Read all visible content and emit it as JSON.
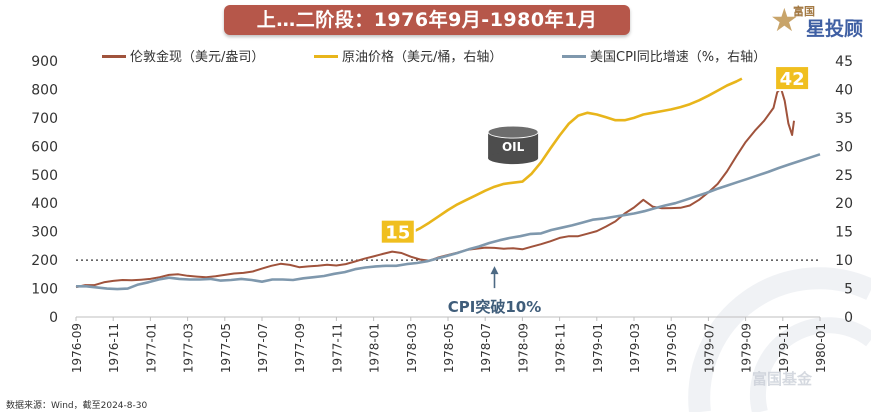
{
  "header": {
    "title": "上…二阶段：1976年9月-1980年1月"
  },
  "logo": {
    "small_text": "富国",
    "big_text": "星投顾",
    "glyph": "star-icon"
  },
  "footer": {
    "source": "数据来源：Wind，截至2024-8-30",
    "watermark": "富国基金"
  },
  "colors": {
    "gold": "#a0533c",
    "oil": "#e8b51b",
    "cpi": "#7f98ad",
    "title_bg": "#b6574a",
    "highlight_bg": "#f0bf1f"
  },
  "chart_data": {
    "type": "line",
    "x_ticks": [
      "1976-09",
      "1976-11",
      "1977-01",
      "1977-03",
      "1977-05",
      "1977-07",
      "1977-09",
      "1977-11",
      "1978-01",
      "1978-03",
      "1978-05",
      "1978-07",
      "1978-09",
      "1978-11",
      "1979-01",
      "1979-03",
      "1979-05",
      "1979-07",
      "1979-09",
      "1979-11",
      "1980-01"
    ],
    "y_left": {
      "ticks": [
        0,
        100,
        200,
        300,
        400,
        500,
        600,
        700,
        800,
        900
      ],
      "range": [
        0,
        900
      ]
    },
    "y_right": {
      "ticks": [
        0,
        5,
        10,
        15,
        20,
        25,
        30,
        35,
        40,
        45
      ],
      "range": [
        0,
        45
      ]
    },
    "reference_line": {
      "axis": "left",
      "value": 200,
      "style": "dotted"
    },
    "series": [
      {
        "name": "伦敦金现（美元/盎司）",
        "axis": "left",
        "color": "#a0533c",
        "points": [
          [
            0,
            105
          ],
          [
            0.5,
            112
          ],
          [
            1,
            112
          ],
          [
            1.5,
            122
          ],
          [
            2,
            127
          ],
          [
            2.5,
            130
          ],
          [
            3,
            129
          ],
          [
            3.5,
            131
          ],
          [
            4,
            134
          ],
          [
            4.5,
            140
          ],
          [
            5,
            148
          ],
          [
            5.5,
            150
          ],
          [
            6,
            145
          ],
          [
            6.5,
            142
          ],
          [
            7,
            140
          ],
          [
            7.5,
            143
          ],
          [
            8,
            148
          ],
          [
            8.5,
            153
          ],
          [
            9,
            155
          ],
          [
            9.5,
            160
          ],
          [
            10,
            170
          ],
          [
            10.5,
            180
          ],
          [
            11,
            187
          ],
          [
            11.5,
            183
          ],
          [
            12,
            175
          ],
          [
            12.5,
            178
          ],
          [
            13,
            180
          ],
          [
            13.5,
            184
          ],
          [
            14,
            181
          ],
          [
            14.5,
            186
          ],
          [
            15,
            195
          ],
          [
            15.5,
            205
          ],
          [
            16,
            213
          ],
          [
            16.5,
            222
          ],
          [
            17,
            230
          ],
          [
            17.5,
            225
          ],
          [
            18,
            212
          ],
          [
            18.5,
            202
          ],
          [
            19,
            198
          ],
          [
            19.5,
            210
          ],
          [
            20,
            218
          ],
          [
            20.5,
            226
          ],
          [
            21,
            236
          ],
          [
            21.5,
            240
          ],
          [
            22,
            244
          ],
          [
            22.5,
            243
          ],
          [
            23,
            240
          ],
          [
            23.5,
            242
          ],
          [
            24,
            238
          ],
          [
            24.5,
            247
          ],
          [
            25,
            256
          ],
          [
            25.5,
            266
          ],
          [
            26,
            278
          ],
          [
            26.5,
            284
          ],
          [
            27,
            284
          ],
          [
            27.5,
            293
          ],
          [
            28,
            302
          ],
          [
            28.5,
            318
          ],
          [
            29,
            336
          ],
          [
            29.5,
            364
          ],
          [
            30,
            385
          ],
          [
            30.5,
            412
          ],
          [
            31,
            388
          ],
          [
            31.5,
            382
          ],
          [
            32,
            383
          ],
          [
            32.5,
            384
          ],
          [
            33,
            392
          ],
          [
            33.5,
            412
          ],
          [
            34,
            438
          ],
          [
            34.5,
            468
          ],
          [
            35,
            512
          ],
          [
            35.5,
            565
          ],
          [
            36,
            615
          ],
          [
            36.5,
            655
          ],
          [
            37,
            690
          ],
          [
            37.5,
            735
          ],
          [
            37.7,
            790
          ],
          [
            37.9,
            805
          ],
          [
            38.1,
            760
          ],
          [
            38.3,
            680
          ],
          [
            38.5,
            640
          ],
          [
            38.6,
            690
          ]
        ]
      },
      {
        "name": "原油价格（美元/桶，右轴）",
        "axis": "right",
        "color": "#e8b51b",
        "points": [
          [
            17,
            14.1
          ],
          [
            17.6,
            14.3
          ],
          [
            18,
            14.8
          ],
          [
            18.5,
            15.6
          ],
          [
            19,
            16.6
          ],
          [
            19.5,
            17.7
          ],
          [
            20,
            18.8
          ],
          [
            20.5,
            19.8
          ],
          [
            21,
            20.6
          ],
          [
            21.5,
            21.4
          ],
          [
            22,
            22.2
          ],
          [
            22.5,
            22.9
          ],
          [
            23,
            23.4
          ],
          [
            23.5,
            23.6
          ],
          [
            24,
            23.8
          ],
          [
            24.5,
            25.2
          ],
          [
            25,
            27.2
          ],
          [
            25.5,
            29.6
          ],
          [
            26,
            31.9
          ],
          [
            26.5,
            34.0
          ],
          [
            27,
            35.4
          ],
          [
            27.5,
            35.9
          ],
          [
            28,
            35.6
          ],
          [
            28.5,
            35.1
          ],
          [
            29,
            34.6
          ],
          [
            29.5,
            34.6
          ],
          [
            30,
            35.0
          ],
          [
            30.5,
            35.6
          ],
          [
            31,
            35.9
          ],
          [
            31.5,
            36.2
          ],
          [
            32,
            36.5
          ],
          [
            32.5,
            36.9
          ],
          [
            33,
            37.4
          ],
          [
            33.5,
            38.1
          ],
          [
            34,
            38.9
          ],
          [
            34.5,
            39.8
          ],
          [
            35,
            40.7
          ],
          [
            35.5,
            41.4
          ],
          [
            35.8,
            41.9
          ]
        ]
      },
      {
        "name": "美国CPI同比增速（%，右轴）",
        "axis": "right",
        "color": "#7f98ad",
        "points": [
          [
            0,
            5.4
          ],
          [
            1,
            5.4
          ],
          [
            2,
            5.2
          ],
          [
            3,
            5.0
          ],
          [
            4,
            4.9
          ],
          [
            5,
            5.0
          ],
          [
            6,
            5.7
          ],
          [
            7,
            6.1
          ],
          [
            8,
            6.6
          ],
          [
            9,
            6.9
          ],
          [
            10,
            6.7
          ],
          [
            11,
            6.6
          ],
          [
            12,
            6.6
          ],
          [
            13,
            6.7
          ],
          [
            14,
            6.4
          ],
          [
            15,
            6.5
          ],
          [
            16,
            6.7
          ],
          [
            17,
            6.5
          ],
          [
            18,
            6.2
          ],
          [
            19,
            6.6
          ],
          [
            20,
            6.6
          ],
          [
            21,
            6.5
          ],
          [
            22,
            6.8
          ],
          [
            23,
            7.0
          ],
          [
            24,
            7.2
          ],
          [
            25,
            7.6
          ],
          [
            26,
            7.9
          ],
          [
            27,
            8.4
          ],
          [
            28,
            8.7
          ],
          [
            29,
            8.9
          ],
          [
            30,
            9.0
          ],
          [
            31,
            9.0
          ],
          [
            32,
            9.3
          ],
          [
            33,
            9.5
          ],
          [
            34,
            9.8
          ],
          [
            35,
            10.3
          ],
          [
            36,
            10.8
          ],
          [
            37,
            11.3
          ],
          [
            38,
            11.9
          ],
          [
            39,
            12.4
          ],
          [
            40,
            13.0
          ],
          [
            41,
            13.5
          ],
          [
            42,
            13.9
          ],
          [
            43,
            14.2
          ],
          [
            44,
            14.6
          ],
          [
            45,
            14.7
          ],
          [
            46,
            15.3
          ],
          [
            47,
            15.7
          ],
          [
            48,
            16.1
          ],
          [
            49,
            16.6
          ],
          [
            50,
            17.1
          ],
          [
            51,
            17.3
          ],
          [
            52,
            17.6
          ],
          [
            53,
            17.9
          ],
          [
            54,
            18.2
          ],
          [
            55,
            18.6
          ],
          [
            56,
            19.1
          ],
          [
            57,
            19.6
          ],
          [
            58,
            20.0
          ],
          [
            59,
            20.6
          ],
          [
            60,
            21.2
          ],
          [
            61,
            21.8
          ],
          [
            62,
            22.5
          ],
          [
            63,
            23.1
          ],
          [
            64,
            23.7
          ],
          [
            65,
            24.3
          ],
          [
            66,
            24.9
          ],
          [
            67,
            25.5
          ],
          [
            68,
            26.2
          ],
          [
            69,
            26.8
          ],
          [
            70,
            27.4
          ],
          [
            71,
            28.0
          ],
          [
            72,
            28.6
          ]
        ]
      }
    ],
    "annotations": [
      {
        "text": "15",
        "type": "highlight-box",
        "x": 17.3,
        "y_axis": "right",
        "y": 15
      },
      {
        "text": "42",
        "type": "highlight-box",
        "x": 38.5,
        "y_axis": "right",
        "y": 42
      },
      {
        "text": "OIL",
        "type": "barrel-icon",
        "x": 23.5,
        "y_axis": "left",
        "y": 615
      },
      {
        "text": "CPI突破10%",
        "type": "arrow-label",
        "x": 22.5,
        "y_axis": "left",
        "y": 200
      }
    ]
  }
}
